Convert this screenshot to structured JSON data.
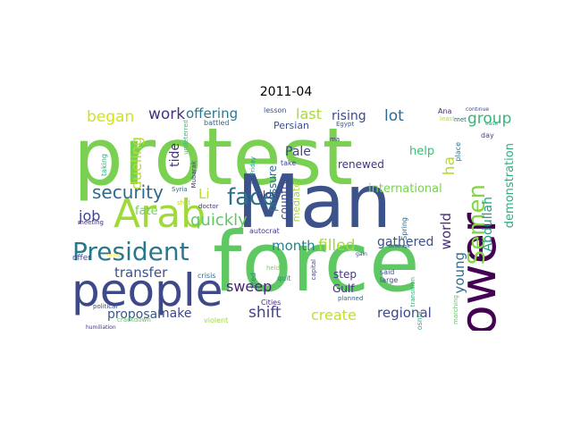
{
  "title": "2011-04",
  "words": [
    {
      "t": "protest",
      "c": "#7ad151"
    },
    {
      "t": "Man",
      "c": "#3b528b"
    },
    {
      "t": "force",
      "c": "#5ec962"
    },
    {
      "t": "Arab",
      "c": "#a0da39"
    },
    {
      "t": "people",
      "c": "#3e4989"
    },
    {
      "t": "power",
      "c": "#440154"
    },
    {
      "t": "face",
      "c": "#2c728e"
    },
    {
      "t": "President",
      "c": "#2a788e"
    },
    {
      "t": "Semen",
      "c": "#86d549"
    },
    {
      "t": "security",
      "c": "#31688e"
    },
    {
      "t": "quickly",
      "c": "#5ec962"
    },
    {
      "t": "group",
      "c": "#35b779"
    },
    {
      "t": "work",
      "c": "#46327e"
    },
    {
      "t": "offering",
      "c": "#2a788e"
    },
    {
      "t": "last",
      "c": "#a8db34"
    },
    {
      "t": "began",
      "c": "#d2e21b"
    },
    {
      "t": "rising",
      "c": "#3e4989"
    },
    {
      "t": "lot",
      "c": "#31688e"
    },
    {
      "t": "month",
      "c": "#26828e"
    },
    {
      "t": "filled",
      "c": "#a0da39"
    },
    {
      "t": "gathered",
      "c": "#3b528b"
    },
    {
      "t": "job",
      "c": "#404688"
    },
    {
      "t": "transfer",
      "c": "#3b528b"
    },
    {
      "t": "sweep",
      "c": "#482475"
    },
    {
      "t": "shift",
      "c": "#414487"
    },
    {
      "t": "create",
      "c": "#c2df23"
    },
    {
      "t": "regional",
      "c": "#3e4989"
    },
    {
      "t": "make",
      "c": "#404688"
    },
    {
      "t": "proposal",
      "c": "#38598c"
    },
    {
      "t": "world",
      "c": "#472d7b"
    },
    {
      "t": "young",
      "c": "#2e6e8e"
    },
    {
      "t": "Abdullah",
      "c": "#1f9e89"
    },
    {
      "t": "demonstration",
      "c": "#2ab07f"
    },
    {
      "t": "international",
      "c": "#7ad151"
    },
    {
      "t": "help",
      "c": "#3dbc74"
    },
    {
      "t": "ha",
      "c": "#b5de2b"
    },
    {
      "t": "renewed",
      "c": "#46337f"
    },
    {
      "t": "Pale",
      "c": "#414487"
    },
    {
      "t": "pressure",
      "c": "#2c728e"
    },
    {
      "t": "country",
      "c": "#3e4a89"
    },
    {
      "t": "mediate",
      "c": "#a0da39"
    },
    {
      "t": "dueling",
      "c": "#b5de2b"
    },
    {
      "t": "tide",
      "c": "#46327e"
    },
    {
      "t": "fate",
      "c": "#73d056"
    },
    {
      "t": "Li",
      "c": "#b5de2b"
    },
    {
      "t": "bloc",
      "c": "#404688"
    },
    {
      "t": "Gulf",
      "c": "#46327e"
    },
    {
      "t": "step",
      "c": "#453882"
    },
    {
      "t": "Persian",
      "c": "#3b528b"
    },
    {
      "t": "taking",
      "c": "#2ab07f"
    },
    {
      "t": "lesson",
      "c": "#3b528b"
    },
    {
      "t": "battled",
      "c": "#31688e"
    },
    {
      "t": "undeterred",
      "c": "#3dbc74"
    },
    {
      "t": "Mubarak",
      "c": "#433e85"
    },
    {
      "t": "Friday",
      "c": "#1fa187"
    },
    {
      "t": "Syria",
      "c": "#2e6e8e"
    },
    {
      "t": "shot",
      "c": "#c2df23"
    },
    {
      "t": "doctor",
      "c": "#453882"
    },
    {
      "t": "offer",
      "c": "#3e4989"
    },
    {
      "t": "meeting",
      "c": "#482878"
    },
    {
      "t": "political",
      "c": "#3b528b"
    },
    {
      "t": "crisis",
      "c": "#31688e"
    },
    {
      "t": "crackdown",
      "c": "#5ec962"
    },
    {
      "t": "violent",
      "c": "#a0da39"
    },
    {
      "t": "humiliation",
      "c": "#46327e"
    },
    {
      "t": "autocrat",
      "c": "#443a83"
    },
    {
      "t": "held",
      "c": "#7ad151"
    },
    {
      "t": "fired",
      "c": "#25848e"
    },
    {
      "t": "quit",
      "c": "#26828e"
    },
    {
      "t": "capital",
      "c": "#3e4989"
    },
    {
      "t": "Cities",
      "c": "#472d7b"
    },
    {
      "t": "planned",
      "c": "#31688e"
    },
    {
      "t": "transition",
      "c": "#2fb47c"
    },
    {
      "t": "said",
      "c": "#3b528b"
    },
    {
      "t": "large",
      "c": "#404688"
    },
    {
      "t": "Spring",
      "c": "#31688e"
    },
    {
      "t": "Bosnia",
      "c": "#2ab07f"
    },
    {
      "t": "marching",
      "c": "#5ec962"
    },
    {
      "t": "place",
      "c": "#2c728e"
    },
    {
      "t": "day",
      "c": "#3e4989"
    },
    {
      "t": "met",
      "c": "#31688e"
    },
    {
      "t": "least",
      "c": "#b5de2b"
    },
    {
      "t": "Ana",
      "c": "#482878"
    },
    {
      "t": "continue",
      "c": "#3e4989"
    },
    {
      "t": "ease",
      "c": "#2ab07f"
    },
    {
      "t": "Egypt",
      "c": "#38598c"
    },
    {
      "t": "ma",
      "c": "#46327e"
    },
    {
      "t": "take",
      "c": "#414487"
    },
    {
      "t": "gain",
      "c": "#3e4989"
    },
    {
      "t": "beverage",
      "c": "#3e4989"
    },
    {
      "t": "ruling",
      "c": "#fde725"
    }
  ]
}
